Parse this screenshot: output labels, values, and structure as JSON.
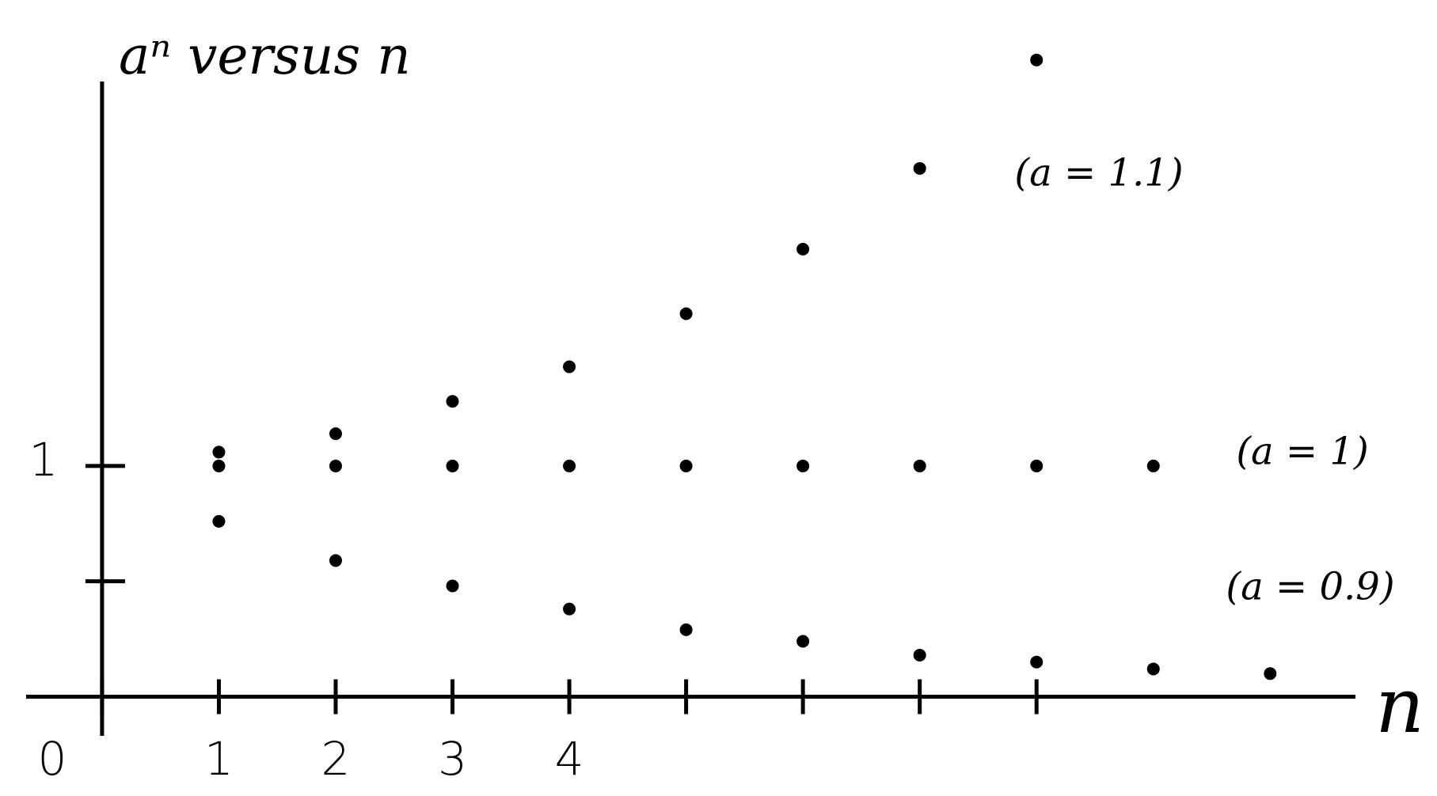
{
  "chart_data": {
    "type": "scatter",
    "title": "aⁿ versus n",
    "x_label": "n",
    "xlim": [
      -0.65,
      10.73
    ],
    "ylim": [
      -0.17,
      2.9
    ],
    "xticks": [
      0,
      1,
      2,
      3,
      4,
      {
        "value": 5,
        "label": null
      },
      {
        "value": 6,
        "label": null
      },
      {
        "value": 7,
        "label": null
      },
      {
        "value": 8,
        "label": null
      }
    ],
    "yticks": [
      {
        "value": 0.5,
        "label": null
      },
      1
    ],
    "series": [
      {
        "name": "(a = 1.1)",
        "color": "#000000",
        "x": [
          1,
          2,
          3,
          4,
          5,
          6,
          7,
          8
        ],
        "values": [
          1.06,
          1.14,
          1.28,
          1.43,
          1.66,
          1.94,
          2.29,
          2.76
        ]
      },
      {
        "name": "(a = 1)",
        "color": "#000000",
        "x": [
          1,
          2,
          3,
          4,
          5,
          6,
          7,
          8,
          9
        ],
        "values": [
          1,
          1,
          1,
          1,
          1,
          1,
          1,
          1,
          1
        ]
      },
      {
        "name": "(a = 0.9)",
        "color": "#000000",
        "x": [
          1,
          2,
          3,
          4,
          5,
          6,
          7,
          8,
          9,
          10
        ],
        "values": [
          0.76,
          0.59,
          0.48,
          0.38,
          0.29,
          0.24,
          0.18,
          0.15,
          0.12,
          0.1
        ]
      }
    ]
  }
}
